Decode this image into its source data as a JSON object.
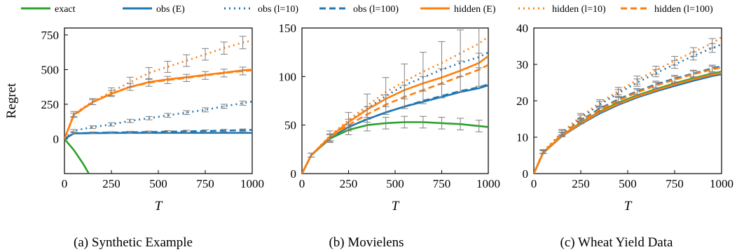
{
  "legend": {
    "placement": "top",
    "entries": [
      {
        "label": "exact",
        "color": "#2ca02c",
        "dash": "solid"
      },
      {
        "label": "obs (E)",
        "color": "#1f77b4",
        "dash": "solid"
      },
      {
        "label": "obs (l=10)",
        "color": "#1f77b4",
        "dash": "dotted"
      },
      {
        "label": "obs (l=100)",
        "color": "#1f77b4",
        "dash": "dashed"
      },
      {
        "label": "hidden (E)",
        "color": "#ff7f0e",
        "dash": "solid"
      },
      {
        "label": "hidden (l=10)",
        "color": "#ff7f0e",
        "dash": "dotted"
      },
      {
        "label": "hidden (l=100)",
        "color": "#ff7f0e",
        "dash": "dashed"
      }
    ]
  },
  "chart_data": [
    {
      "type": "line",
      "caption": "(a) Synthetic Example",
      "xlabel": "T",
      "ylabel": "Regret",
      "xlim": [
        0,
        1000
      ],
      "ylim": [
        -250,
        800
      ],
      "xticks": [
        0,
        250,
        500,
        750,
        1000
      ],
      "yticks": [
        0,
        250,
        500,
        750
      ],
      "series": [
        {
          "name": "exact",
          "x": [
            0,
            50,
            100,
            130
          ],
          "y": [
            0,
            -80,
            -180,
            -250
          ]
        },
        {
          "name": "obs (E)",
          "x": [
            0,
            50,
            150,
            250,
            350,
            450,
            550,
            650,
            750,
            850,
            950,
            1000
          ],
          "y": [
            0,
            40,
            42,
            43,
            44,
            44,
            44,
            44,
            44,
            44,
            44,
            44
          ]
        },
        {
          "name": "obs (l=10)",
          "x": [
            0,
            50,
            150,
            250,
            350,
            450,
            550,
            650,
            750,
            850,
            950,
            1000
          ],
          "y": [
            0,
            60,
            85,
            105,
            130,
            150,
            170,
            190,
            210,
            235,
            258,
            270
          ],
          "err": [
            0,
            8,
            10,
            12,
            12,
            12,
            14,
            14,
            15,
            15,
            15,
            0
          ]
        },
        {
          "name": "obs (l=100)",
          "x": [
            0,
            50,
            150,
            250,
            350,
            450,
            550,
            650,
            750,
            850,
            950,
            1000
          ],
          "y": [
            0,
            40,
            44,
            46,
            48,
            50,
            52,
            55,
            57,
            60,
            63,
            65
          ],
          "err": [
            0,
            5,
            6,
            6,
            7,
            7,
            8,
            8,
            8,
            9,
            9,
            0
          ]
        },
        {
          "name": "hidden (E)",
          "x": [
            0,
            50,
            150,
            250,
            350,
            450,
            550,
            650,
            750,
            850,
            950,
            1000
          ],
          "y": [
            0,
            175,
            265,
            325,
            375,
            410,
            430,
            445,
            462,
            478,
            495,
            500
          ]
        },
        {
          "name": "hidden (l=10)",
          "x": [
            0,
            50,
            150,
            250,
            350,
            450,
            550,
            650,
            750,
            850,
            950,
            1000
          ],
          "y": [
            0,
            180,
            270,
            340,
            410,
            475,
            520,
            565,
            610,
            655,
            695,
            710
          ],
          "err": [
            0,
            18,
            22,
            28,
            35,
            40,
            40,
            42,
            42,
            44,
            45,
            0
          ]
        },
        {
          "name": "hidden (l=100)",
          "x": [
            0,
            50,
            150,
            250,
            350,
            450,
            550,
            650,
            750,
            850,
            950,
            1000
          ],
          "y": [
            0,
            170,
            265,
            328,
            375,
            405,
            425,
            440,
            458,
            475,
            490,
            495
          ],
          "err": [
            0,
            15,
            18,
            22,
            25,
            25,
            26,
            26,
            28,
            28,
            28,
            0
          ]
        }
      ]
    },
    {
      "type": "line",
      "caption": "(b) Movielens",
      "xlabel": "T",
      "ylabel": "",
      "xlim": [
        0,
        1000
      ],
      "ylim": [
        0,
        150
      ],
      "xticks": [
        0,
        250,
        500,
        750,
        1000
      ],
      "yticks": [
        0,
        50,
        100,
        150
      ],
      "series": [
        {
          "name": "exact",
          "x": [
            0,
            50,
            150,
            250,
            350,
            450,
            550,
            650,
            750,
            850,
            950,
            1000
          ],
          "y": [
            0,
            19,
            36,
            45,
            50,
            52,
            53,
            53,
            52,
            51,
            49,
            48
          ],
          "err": [
            0,
            2,
            4,
            5,
            6,
            6,
            6,
            6,
            6,
            6,
            6,
            0
          ]
        },
        {
          "name": "obs (E)",
          "x": [
            0,
            50,
            150,
            250,
            350,
            450,
            550,
            650,
            750,
            850,
            950,
            1000
          ],
          "y": [
            0,
            19,
            37,
            48,
            56,
            63,
            69,
            74,
            79,
            84,
            88,
            91
          ]
        },
        {
          "name": "obs (l=10)",
          "x": [
            0,
            50,
            150,
            250,
            350,
            450,
            550,
            650,
            750,
            850,
            950,
            1000
          ],
          "y": [
            0,
            19,
            38,
            53,
            67,
            80,
            91,
            99,
            107,
            114,
            120,
            125
          ]
        },
        {
          "name": "obs (l=100)",
          "x": [
            0,
            50,
            150,
            250,
            350,
            450,
            550,
            650,
            750,
            850,
            950,
            1000
          ],
          "y": [
            0,
            19,
            37,
            48,
            56,
            63,
            69,
            75,
            80,
            85,
            89,
            92
          ]
        },
        {
          "name": "hidden (E)",
          "x": [
            0,
            50,
            150,
            250,
            350,
            450,
            550,
            650,
            750,
            850,
            950,
            1000
          ],
          "y": [
            0,
            19,
            38,
            53,
            66,
            77,
            86,
            93,
            99,
            106,
            114,
            121
          ]
        },
        {
          "name": "hidden (l=10)",
          "x": [
            0,
            50,
            150,
            250,
            350,
            450,
            550,
            650,
            750,
            850,
            950,
            1000
          ],
          "y": [
            0,
            19,
            39,
            55,
            70,
            84,
            95,
            105,
            114,
            124,
            134,
            141
          ],
          "err": [
            0,
            2,
            5,
            8,
            12,
            15,
            18,
            20,
            22,
            24,
            25,
            0
          ]
        },
        {
          "name": "hidden (l=100)",
          "x": [
            0,
            50,
            150,
            250,
            350,
            450,
            550,
            650,
            750,
            850,
            950,
            1000
          ],
          "y": [
            0,
            19,
            37,
            50,
            61,
            71,
            79,
            86,
            93,
            100,
            107,
            112
          ],
          "err": [
            0,
            2,
            4,
            6,
            8,
            10,
            12,
            14,
            15,
            16,
            17,
            0
          ]
        }
      ]
    },
    {
      "type": "line",
      "caption": "(c) Wheat Yield Data",
      "xlabel": "T",
      "ylabel": "",
      "xlim": [
        0,
        1000
      ],
      "ylim": [
        0,
        40
      ],
      "xticks": [
        0,
        250,
        500,
        750,
        1000
      ],
      "yticks": [
        0,
        10,
        20,
        30,
        40
      ],
      "series": [
        {
          "name": "exact",
          "x": [
            0,
            50,
            150,
            250,
            350,
            450,
            550,
            650,
            750,
            850,
            950,
            1000
          ],
          "y": [
            0,
            5.8,
            10.5,
            14,
            17,
            19.5,
            21.5,
            23.2,
            24.8,
            26.2,
            27.5,
            28
          ]
        },
        {
          "name": "obs (E)",
          "x": [
            0,
            50,
            150,
            250,
            350,
            450,
            550,
            650,
            750,
            850,
            950,
            1000
          ],
          "y": [
            0,
            5.7,
            10.3,
            13.6,
            16.5,
            18.9,
            20.9,
            22.6,
            24.1,
            25.5,
            26.8,
            27.3
          ]
        },
        {
          "name": "obs (l=10)",
          "x": [
            0,
            50,
            150,
            250,
            350,
            450,
            550,
            650,
            750,
            850,
            950,
            1000
          ],
          "y": [
            0,
            6,
            11.2,
            15.3,
            18.9,
            22.1,
            25,
            27.6,
            30,
            32.3,
            34.5,
            35.5
          ],
          "err": [
            0,
            0.5,
            0.7,
            0.8,
            0.9,
            1,
            1,
            1,
            1.1,
            1.1,
            1.2,
            0
          ]
        },
        {
          "name": "obs (l=100)",
          "x": [
            0,
            50,
            150,
            250,
            350,
            450,
            550,
            650,
            750,
            850,
            950,
            1000
          ],
          "y": [
            0,
            5.9,
            10.8,
            14.6,
            17.8,
            20.4,
            22.6,
            24.5,
            26.1,
            27.5,
            28.9,
            29.5
          ],
          "err": [
            0,
            0.4,
            0.6,
            0.7,
            0.8,
            0.8,
            0.8,
            0.9,
            0.9,
            0.9,
            0.9,
            0
          ]
        },
        {
          "name": "hidden (E)",
          "x": [
            0,
            50,
            150,
            250,
            350,
            450,
            550,
            650,
            750,
            850,
            950,
            1000
          ],
          "y": [
            0,
            5.8,
            10.4,
            13.8,
            16.8,
            19.2,
            21.2,
            22.9,
            24.5,
            25.9,
            27.2,
            27.7
          ]
        },
        {
          "name": "hidden (l=10)",
          "x": [
            0,
            50,
            150,
            250,
            350,
            450,
            550,
            650,
            750,
            850,
            950,
            1000
          ],
          "y": [
            0,
            6.1,
            11.4,
            15.7,
            19.4,
            22.7,
            25.7,
            28.4,
            31,
            33.4,
            35.8,
            37.5
          ],
          "err": [
            0,
            0.5,
            0.7,
            0.8,
            0.9,
            1,
            1.1,
            1.1,
            1.2,
            1.2,
            1.3,
            0
          ]
        },
        {
          "name": "hidden (l=100)",
          "x": [
            0,
            50,
            150,
            250,
            350,
            450,
            550,
            650,
            750,
            850,
            950,
            1000
          ],
          "y": [
            0,
            5.9,
            10.7,
            14.4,
            17.5,
            20.1,
            22.3,
            24.2,
            25.8,
            27.3,
            28.6,
            29.2
          ],
          "err": [
            0,
            0.4,
            0.6,
            0.7,
            0.8,
            0.8,
            0.8,
            0.9,
            0.9,
            0.9,
            0.9,
            0
          ]
        }
      ]
    }
  ]
}
